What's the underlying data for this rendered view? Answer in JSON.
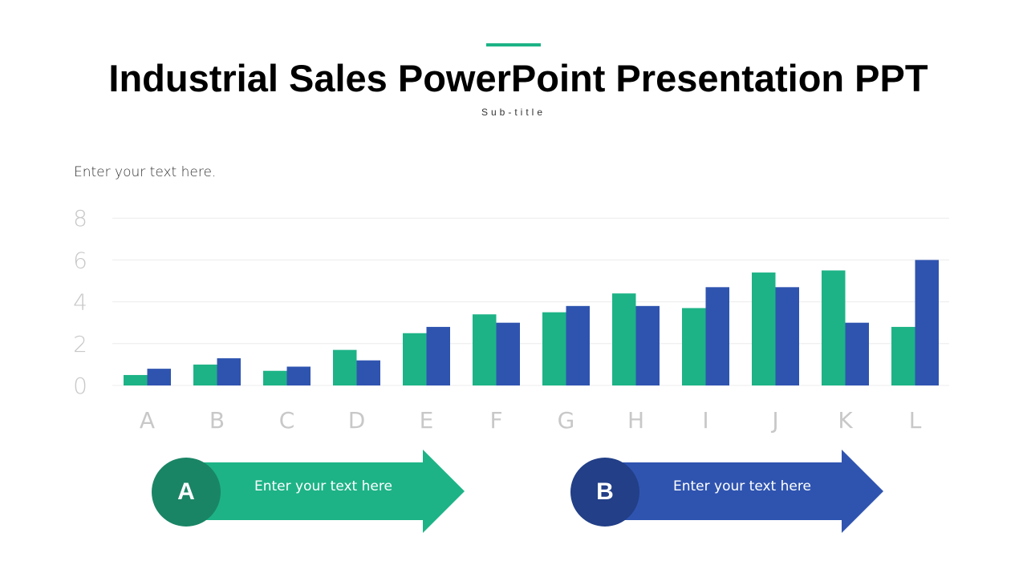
{
  "slide": {
    "title": "Industrial Sales PowerPoint Presentation PPT",
    "subtitle": "Sub-title",
    "intro_text": "Enter your text here."
  },
  "colors": {
    "accent": "#1db386",
    "series_a": "#1db386",
    "series_b": "#2f54b0",
    "circle_a": "#1a8565",
    "circle_b": "#223f87"
  },
  "chart_data": {
    "type": "bar",
    "categories": [
      "A",
      "B",
      "C",
      "D",
      "E",
      "F",
      "G",
      "H",
      "I",
      "J",
      "K",
      "L"
    ],
    "series": [
      {
        "name": "A",
        "values": [
          0.5,
          1.0,
          0.7,
          1.7,
          2.5,
          3.4,
          3.5,
          4.4,
          3.7,
          5.4,
          5.5,
          2.8
        ]
      },
      {
        "name": "B",
        "values": [
          0.8,
          1.3,
          0.9,
          1.2,
          2.8,
          3.0,
          3.8,
          3.8,
          4.7,
          4.7,
          3.0,
          6.0
        ]
      }
    ],
    "yticks": [
      "0",
      "2",
      "4",
      "6",
      "8"
    ],
    "ylim": [
      0,
      8
    ],
    "grid": true
  },
  "callouts": [
    {
      "letter": "A",
      "text": "Enter your text here"
    },
    {
      "letter": "B",
      "text": "Enter your text here"
    }
  ]
}
